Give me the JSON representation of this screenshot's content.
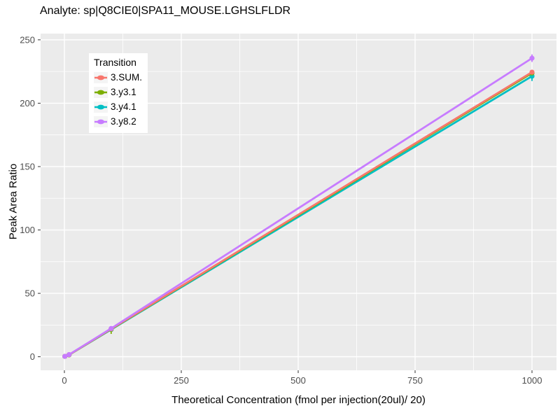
{
  "title": "Analyte: sp|Q8CIE0|SPA11_MOUSE.LGHSLFLDR",
  "chart_data": {
    "type": "line",
    "title": "Analyte: sp|Q8CIE0|SPA11_MOUSE.LGHSLFLDR",
    "xlabel": "Theoretical Concentration (fmol per injection(20ul)/ 20)",
    "ylabel": "Peak Area Ratio",
    "x": [
      1,
      10,
      100,
      1000
    ],
    "series": [
      {
        "name": "3.SUM.",
        "color": "#F8766D",
        "values": [
          0.3,
          1.6,
          22.0,
          224.5
        ],
        "error_bars": []
      },
      {
        "name": "3.y3.1",
        "color": "#7CAE00",
        "values": [
          0.3,
          1.5,
          21.8,
          223.8
        ],
        "error_bars": [
          {
            "x": 100,
            "ymin": 18.0,
            "ymax": 22.5
          }
        ]
      },
      {
        "name": "3.y4.1",
        "color": "#00BFC4",
        "values": [
          0.3,
          1.5,
          21.5,
          221.3
        ],
        "error_bars": [
          {
            "x": 1000,
            "ymin": 217.5,
            "ymax": 222.5
          }
        ]
      },
      {
        "name": "3.y8.2",
        "color": "#C77CFF",
        "values": [
          0.3,
          1.7,
          22.3,
          235.5
        ],
        "error_bars": [
          {
            "x": 1000,
            "ymin": 232.5,
            "ymax": 238.5
          }
        ]
      }
    ],
    "legend": {
      "title": "Transition",
      "position": "inside-top-left"
    },
    "x_ticks": [
      0,
      250,
      500,
      750,
      1000
    ],
    "y_ticks": [
      0,
      50,
      100,
      150,
      200,
      250
    ],
    "x_minor_ticks": [
      125,
      375,
      625,
      875
    ],
    "y_minor_ticks": [
      25,
      75,
      125,
      175,
      225
    ],
    "xlim": [
      -50.9,
      1052.4
    ],
    "ylim": [
      -10.7,
      254.9
    ],
    "grid": true,
    "draw_order": [
      2,
      1,
      0,
      3
    ],
    "colors": {
      "panel_bg": "#EBEBEB",
      "grid": "#FFFFFF",
      "axis_text": "#4D4D4D",
      "tick_mark": "#333333",
      "title_text": "#000000"
    }
  }
}
